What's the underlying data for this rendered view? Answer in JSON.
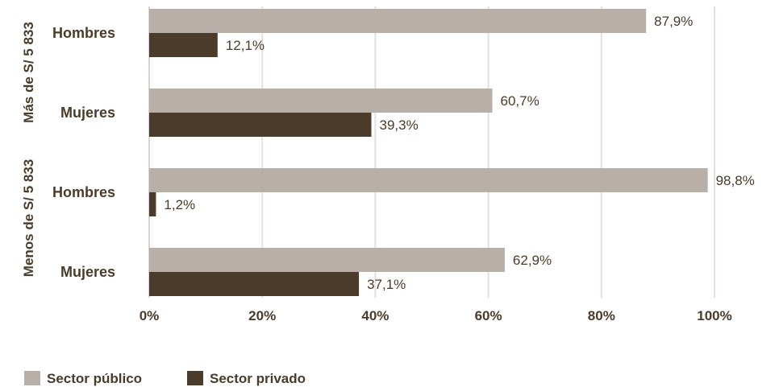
{
  "chart_data": {
    "type": "bar",
    "orientation": "horizontal",
    "groups": [
      {
        "label": "Más de S/ 5 833",
        "categories": [
          "Hombres",
          "Mujeres"
        ]
      },
      {
        "label": "Menos de S/ 5 833",
        "categories": [
          "Hombres",
          "Mujeres"
        ]
      }
    ],
    "series": [
      {
        "name": "Sector público",
        "color": "#b8b0a8",
        "values": [
          87.9,
          60.7,
          98.8,
          62.9
        ],
        "labels": [
          "87,9%",
          "60,7%",
          "98,8%",
          "62,9%"
        ]
      },
      {
        "name": "Sector privado",
        "color": "#4a3b2a",
        "values": [
          12.1,
          39.3,
          1.2,
          37.1
        ],
        "labels": [
          "12,1%",
          "39,3%",
          "1,2%",
          "37,1%"
        ]
      }
    ],
    "xaxis": {
      "ticks": [
        0,
        20,
        40,
        60,
        80,
        100
      ],
      "tick_labels": [
        "0%",
        "20%",
        "40%",
        "60%",
        "80%",
        "100%"
      ],
      "xlim": [
        0,
        100
      ]
    },
    "grid": true,
    "legend_position": "bottom-left"
  }
}
